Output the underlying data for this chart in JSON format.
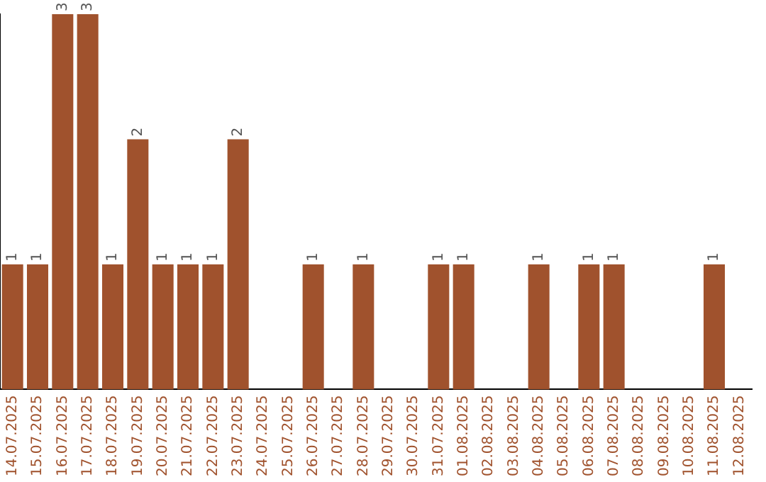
{
  "chart_data": {
    "type": "bar",
    "categories": [
      "14.07.2025",
      "15.07.2025",
      "16.07.2025",
      "17.07.2025",
      "18.07.2025",
      "19.07.2025",
      "20.07.2025",
      "21.07.2025",
      "22.07.2025",
      "23.07.2025",
      "24.07.2025",
      "25.07.2025",
      "26.07.2025",
      "27.07.2025",
      "28.07.2025",
      "29.07.2025",
      "30.07.2025",
      "31.07.2025",
      "01.08.2025",
      "02.08.2025",
      "03.08.2025",
      "04.08.2025",
      "05.08.2025",
      "06.08.2025",
      "07.08.2025",
      "08.08.2025",
      "09.08.2025",
      "10.08.2025",
      "11.08.2025",
      "12.08.2025"
    ],
    "values": [
      1,
      1,
      3,
      3,
      1,
      2,
      1,
      1,
      1,
      2,
      0,
      0,
      1,
      0,
      1,
      0,
      0,
      1,
      1,
      0,
      0,
      1,
      0,
      1,
      1,
      0,
      0,
      0,
      1,
      0
    ],
    "value_labels": [
      "1",
      "1",
      "3",
      "3",
      "1",
      "2",
      "1",
      "1",
      "1",
      "2",
      null,
      null,
      "1",
      null,
      "1",
      null,
      null,
      "1",
      "1",
      null,
      null,
      "1",
      null,
      "1",
      "1",
      null,
      null,
      null,
      "1",
      null
    ],
    "color": "#a0522d",
    "ylim": [
      0,
      3
    ],
    "tick_labels": "x",
    "grid": false,
    "legend": false
  }
}
